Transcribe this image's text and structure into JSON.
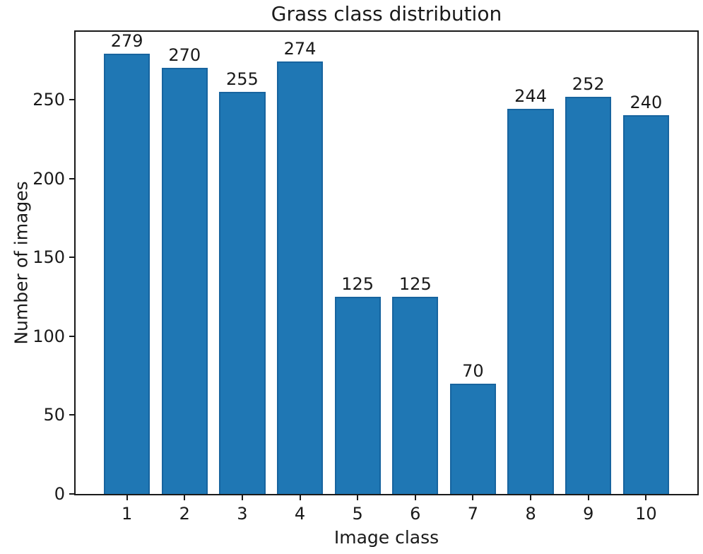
{
  "chart_data": {
    "type": "bar",
    "title": "Grass class distribution",
    "xlabel": "Image class",
    "ylabel": "Number of images",
    "categories": [
      "1",
      "2",
      "3",
      "4",
      "5",
      "6",
      "7",
      "8",
      "9",
      "10"
    ],
    "values": [
      279,
      270,
      255,
      274,
      125,
      125,
      70,
      244,
      252,
      240
    ],
    "yticks": [
      0,
      50,
      100,
      150,
      200,
      250
    ],
    "ylim": [
      0,
      293
    ],
    "grid": false,
    "legend": "none",
    "bar_color": "#1f77b4",
    "bar_edge_color": "#17649f",
    "axis_color": "#1a1a1a",
    "text_color": "#1a1a1a",
    "background": "#ffffff"
  }
}
